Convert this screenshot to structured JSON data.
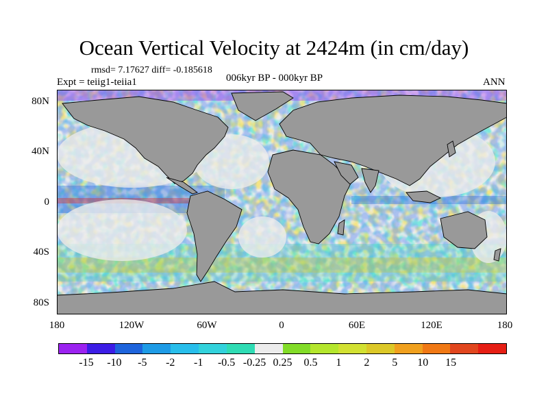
{
  "header": {
    "title": "Ocean Vertical Velocity at 2424m (in cm/day)",
    "stats": "rmsd= 7.17627 diff= -0.185618",
    "experiment": "Expt = teiig1-teiia1",
    "period": "006kyr BP - 000kyr BP",
    "season": "ANN"
  },
  "map": {
    "projection": "cylindrical equidistant",
    "lon_range": [
      -180,
      180
    ],
    "lat_range": [
      -90,
      90
    ],
    "land_color": "#999999",
    "y_ticks": [
      "80N",
      "40N",
      "0",
      "40S",
      "80S"
    ],
    "x_ticks": [
      "180",
      "120W",
      "60W",
      "0",
      "60E",
      "120E",
      "180"
    ]
  },
  "colorbar": {
    "colors": [
      "#9b22f0",
      "#3c1de6",
      "#1e64dc",
      "#1e9be6",
      "#28beeb",
      "#32d2dc",
      "#2fdcb4",
      "#ececec",
      "#82dc28",
      "#b4e62d",
      "#d2e132",
      "#dcc828",
      "#f0a01e",
      "#f07814",
      "#e1461e",
      "#e61e14"
    ],
    "labels": [
      "-15",
      "-10",
      "-5",
      "-2",
      "-1",
      "-0.5",
      "-0.25",
      "0.25",
      "0.5",
      "1",
      "2",
      "5",
      "10",
      "15"
    ]
  }
}
